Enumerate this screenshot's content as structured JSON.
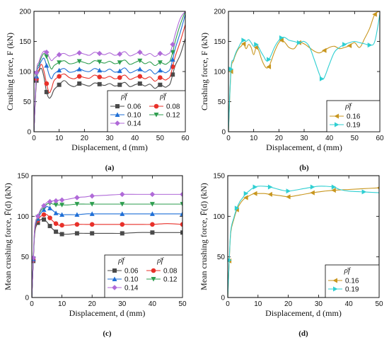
{
  "chart_data": [
    {
      "panel_label": "(a)",
      "type": "line",
      "ylabel": "Crushing force, F (kN)",
      "xlabel": "Displacement, d (mm)",
      "xlim": [
        0,
        60
      ],
      "ylim": [
        0,
        200
      ],
      "xticks": [
        0,
        10,
        20,
        30,
        40,
        50,
        60
      ],
      "yticks": [
        0,
        50,
        100,
        150,
        200
      ],
      "legend": {
        "placement": "bottom-right",
        "columns": 2,
        "header": "ρ̄f"
      },
      "series": [
        {
          "name": "0.06",
          "color": "#4a4a4a",
          "marker": "square",
          "x": [
            0,
            1,
            2,
            3,
            4,
            5,
            6,
            7,
            8,
            10,
            12,
            14,
            16,
            18,
            20,
            22,
            24,
            26,
            28,
            30,
            32,
            34,
            36,
            38,
            40,
            42,
            44,
            46,
            48,
            50,
            52,
            53,
            54,
            55,
            56,
            58,
            60
          ],
          "y": [
            0,
            85,
            100,
            105,
            90,
            66,
            56,
            60,
            70,
            78,
            85,
            78,
            75,
            80,
            78,
            76,
            81,
            79,
            77,
            80,
            76,
            78,
            82,
            75,
            78,
            80,
            76,
            79,
            72,
            78,
            74,
            76,
            80,
            95,
            110,
            128,
            155
          ]
        },
        {
          "name": "0.08",
          "color": "#e8312a",
          "marker": "circle",
          "x": [
            0,
            1,
            2,
            3,
            4,
            5,
            6,
            7,
            8,
            10,
            12,
            14,
            16,
            18,
            20,
            22,
            24,
            26,
            28,
            30,
            32,
            34,
            36,
            38,
            40,
            42,
            44,
            46,
            48,
            50,
            52,
            53,
            54,
            55,
            56,
            58,
            60
          ],
          "y": [
            0,
            88,
            103,
            112,
            100,
            80,
            65,
            72,
            85,
            92,
            96,
            90,
            88,
            92,
            90,
            89,
            94,
            91,
            89,
            92,
            88,
            90,
            94,
            87,
            90,
            92,
            88,
            91,
            84,
            90,
            86,
            88,
            92,
            108,
            125,
            150,
            178
          ]
        },
        {
          "name": "0.10",
          "color": "#1f6fd6",
          "marker": "triangle-up",
          "x": [
            0,
            1,
            2,
            3,
            4,
            5,
            6,
            7,
            8,
            10,
            12,
            14,
            16,
            18,
            20,
            22,
            24,
            26,
            28,
            30,
            32,
            34,
            36,
            38,
            40,
            42,
            44,
            46,
            48,
            50,
            52,
            53,
            54,
            55,
            56,
            58,
            60
          ],
          "y": [
            0,
            92,
            108,
            118,
            122,
            110,
            95,
            88,
            96,
            102,
            105,
            99,
            100,
            104,
            101,
            100,
            105,
            102,
            100,
            104,
            99,
            101,
            106,
            98,
            101,
            104,
            99,
            103,
            96,
            102,
            98,
            100,
            104,
            120,
            138,
            165,
            195
          ]
        },
        {
          "name": "0.12",
          "color": "#2e9e4f",
          "marker": "triangle-down",
          "x": [
            0,
            1,
            2,
            3,
            4,
            5,
            6,
            7,
            8,
            10,
            12,
            14,
            16,
            18,
            20,
            22,
            24,
            26,
            28,
            30,
            32,
            34,
            36,
            38,
            40,
            42,
            44,
            46,
            48,
            50,
            52,
            53,
            54,
            55,
            56,
            58,
            60
          ],
          "y": [
            0,
            95,
            112,
            124,
            130,
            125,
            112,
            104,
            110,
            115,
            118,
            113,
            114,
            117,
            115,
            113,
            118,
            116,
            114,
            117,
            113,
            115,
            119,
            112,
            115,
            118,
            113,
            116,
            110,
            115,
            112,
            114,
            118,
            132,
            150,
            178,
            200
          ]
        },
        {
          "name": "0.14",
          "color": "#b06ad8",
          "marker": "diamond",
          "x": [
            0,
            1,
            2,
            3,
            4,
            5,
            6,
            7,
            8,
            10,
            12,
            14,
            16,
            18,
            20,
            22,
            24,
            26,
            28,
            30,
            32,
            34,
            36,
            38,
            40,
            42,
            44,
            46,
            48,
            50,
            52,
            53,
            54,
            55,
            56,
            58,
            60
          ],
          "y": [
            0,
            98,
            116,
            128,
            134,
            132,
            124,
            118,
            122,
            128,
            130,
            126,
            128,
            131,
            129,
            127,
            132,
            130,
            128,
            131,
            127,
            129,
            133,
            126,
            129,
            132,
            127,
            130,
            125,
            130,
            127,
            129,
            132,
            145,
            162,
            188,
            200
          ]
        }
      ]
    },
    {
      "panel_label": "(b)",
      "type": "line",
      "ylabel": "Crushing force, F (kN)",
      "xlabel": "Displacement, d (mm)",
      "xlim": [
        0,
        60
      ],
      "ylim": [
        0,
        200
      ],
      "xticks": [
        0,
        10,
        20,
        30,
        40,
        50,
        60
      ],
      "yticks": [
        0,
        50,
        100,
        150,
        200
      ],
      "legend": {
        "placement": "bottom-right",
        "columns": 1,
        "header": "ρ̄f"
      },
      "series": [
        {
          "name": "0.16",
          "color": "#c8961e",
          "marker": "triangle-left",
          "x": [
            0,
            1,
            2,
            3,
            4,
            5,
            6,
            7,
            8,
            9,
            10,
            11,
            12,
            13,
            14,
            15,
            16,
            17,
            18,
            19,
            20,
            21,
            22,
            23,
            24,
            26,
            28,
            30,
            32,
            34,
            36,
            38,
            40,
            42,
            44,
            46,
            48,
            50,
            52,
            54,
            56,
            58,
            60
          ],
          "y": [
            0,
            100,
            118,
            130,
            138,
            142,
            146,
            138,
            145,
            140,
            128,
            140,
            135,
            122,
            112,
            106,
            108,
            118,
            130,
            140,
            148,
            152,
            150,
            145,
            140,
            138,
            148,
            146,
            140,
            134,
            131,
            135,
            140,
            142,
            138,
            140,
            143,
            148,
            140,
            155,
            172,
            195,
            200
          ]
        },
        {
          "name": "0.19",
          "color": "#2fcfd2",
          "marker": "triangle-right",
          "x": [
            0,
            1,
            2,
            3,
            4,
            5,
            6,
            7,
            8,
            9,
            10,
            11,
            12,
            13,
            14,
            15,
            16,
            17,
            18,
            19,
            20,
            21,
            22,
            23,
            24,
            26,
            28,
            30,
            32,
            34,
            36,
            37,
            38,
            40,
            42,
            44,
            46,
            48,
            50,
            52,
            54,
            56,
            58,
            60
          ],
          "y": [
            0,
            104,
            120,
            132,
            140,
            148,
            152,
            150,
            153,
            148,
            142,
            145,
            140,
            132,
            125,
            118,
            120,
            128,
            138,
            146,
            152,
            156,
            157,
            155,
            152,
            150,
            148,
            150,
            142,
            120,
            96,
            88,
            90,
            112,
            132,
            140,
            145,
            148,
            150,
            148,
            146,
            144,
            150,
            195
          ]
        }
      ]
    },
    {
      "panel_label": "(c)",
      "type": "line",
      "ylabel": "Mean crushing force, F̄(d) (kN)",
      "xlabel": "Displacement, d (mm)",
      "xlim": [
        0,
        50
      ],
      "ylim": [
        0,
        150
      ],
      "xticks": [
        0,
        10,
        20,
        30,
        40,
        50
      ],
      "yticks": [
        0,
        50,
        100,
        150
      ],
      "legend": {
        "placement": "bottom-right",
        "columns": 2,
        "header": "ρ̄f"
      },
      "series": [
        {
          "name": "0.06",
          "color": "#4a4a4a",
          "marker": "square",
          "x": [
            0,
            0.5,
            1,
            2,
            3,
            4,
            5,
            6,
            7,
            8,
            9,
            10,
            12,
            15,
            18,
            20,
            25,
            30,
            35,
            40,
            45,
            50
          ],
          "y": [
            0,
            45,
            80,
            92,
            96,
            96,
            93,
            88,
            84,
            81,
            79,
            78,
            78,
            79,
            79,
            79,
            79,
            79,
            80,
            80,
            80,
            80
          ]
        },
        {
          "name": "0.08",
          "color": "#e8312a",
          "marker": "circle",
          "x": [
            0,
            0.5,
            1,
            2,
            3,
            4,
            5,
            6,
            7,
            8,
            9,
            10,
            12,
            15,
            18,
            20,
            25,
            30,
            35,
            40,
            45,
            50
          ],
          "y": [
            0,
            46,
            82,
            95,
            100,
            102,
            102,
            98,
            94,
            91,
            89,
            89,
            89,
            90,
            90,
            90,
            90,
            90,
            90,
            90,
            91,
            90
          ]
        },
        {
          "name": "0.10",
          "color": "#1f6fd6",
          "marker": "triangle-up",
          "x": [
            0,
            0.5,
            1,
            2,
            3,
            4,
            5,
            6,
            7,
            8,
            9,
            10,
            12,
            15,
            18,
            20,
            25,
            30,
            35,
            40,
            45,
            50
          ],
          "y": [
            0,
            47,
            84,
            97,
            104,
            108,
            112,
            110,
            107,
            104,
            103,
            102,
            102,
            102,
            103,
            103,
            103,
            103,
            103,
            103,
            103,
            103
          ]
        },
        {
          "name": "0.12",
          "color": "#2e9e4f",
          "marker": "triangle-down",
          "x": [
            0,
            0.5,
            1,
            2,
            3,
            4,
            5,
            6,
            7,
            8,
            9,
            10,
            12,
            15,
            18,
            20,
            25,
            30,
            35,
            40,
            45,
            50
          ],
          "y": [
            0,
            48,
            86,
            99,
            107,
            111,
            115,
            116,
            115,
            114,
            114,
            114,
            114,
            115,
            115,
            115,
            115,
            115,
            115,
            115,
            115,
            115
          ]
        },
        {
          "name": "0.14",
          "color": "#b06ad8",
          "marker": "diamond",
          "x": [
            0,
            0.5,
            1,
            2,
            3,
            4,
            5,
            6,
            7,
            8,
            9,
            10,
            12,
            15,
            18,
            20,
            25,
            30,
            35,
            40,
            45,
            50
          ],
          "y": [
            0,
            49,
            88,
            100,
            109,
            113,
            117,
            118,
            119,
            119,
            120,
            120,
            121,
            123,
            124,
            125,
            126,
            127,
            127,
            127,
            127,
            127
          ]
        }
      ]
    },
    {
      "panel_label": "(d)",
      "type": "line",
      "ylabel": "Mean crushing force, F̄(d) (kN)",
      "xlabel": "Displacement, d (mm)",
      "xlim": [
        0,
        50
      ],
      "ylim": [
        0,
        150
      ],
      "xticks": [
        0,
        10,
        20,
        30,
        40,
        50
      ],
      "yticks": [
        0,
        50,
        100,
        150
      ],
      "legend": {
        "placement": "bottom-right",
        "columns": 1,
        "header": "ρ̄f"
      },
      "series": [
        {
          "name": "0.16",
          "color": "#c8961e",
          "marker": "triangle-left",
          "x": [
            0,
            0.5,
            1,
            2,
            3,
            4,
            5,
            6,
            7,
            8,
            9,
            10,
            12,
            14,
            16,
            18,
            20,
            22,
            25,
            28,
            30,
            32,
            35,
            40,
            45,
            50
          ],
          "y": [
            0,
            45,
            80,
            96,
            108,
            115,
            120,
            123,
            125,
            127,
            128,
            128,
            128,
            127,
            126,
            125,
            124,
            125,
            127,
            129,
            130,
            131,
            132,
            133,
            134,
            135
          ]
        },
        {
          "name": "0.19",
          "color": "#2fcfd2",
          "marker": "triangle-right",
          "x": [
            0,
            0.5,
            1,
            2,
            3,
            4,
            5,
            6,
            7,
            8,
            9,
            10,
            12,
            14,
            16,
            18,
            20,
            22,
            25,
            28,
            30,
            32,
            35,
            37,
            40,
            45,
            50
          ],
          "y": [
            0,
            46,
            82,
            98,
            110,
            118,
            123,
            128,
            131,
            134,
            136,
            137,
            137,
            136,
            134,
            132,
            131,
            132,
            134,
            136,
            137,
            137,
            136,
            133,
            131,
            130,
            129
          ]
        }
      ]
    }
  ]
}
